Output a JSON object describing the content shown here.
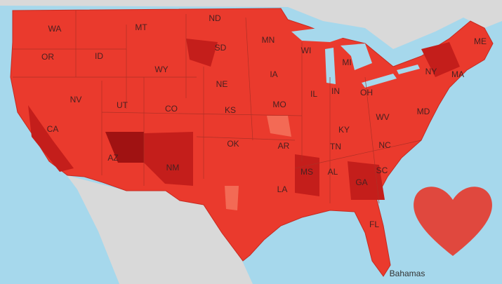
{
  "map": {
    "state_labels": [
      "WA",
      "MT",
      "ND",
      "MN",
      "WI",
      "ME",
      "OR",
      "ID",
      "SD",
      "MI",
      "WY",
      "NY",
      "MA",
      "IA",
      "NE",
      "IL",
      "IN",
      "OH",
      "NV",
      "UT",
      "CO",
      "KS",
      "MO",
      "WV",
      "MD",
      "CA",
      "KY",
      "OK",
      "AR",
      "TN",
      "NC",
      "AZ",
      "NM",
      "MS",
      "AL",
      "SC",
      "GA",
      "LA",
      "FL"
    ],
    "place_labels": [
      "Bahamas"
    ]
  }
}
